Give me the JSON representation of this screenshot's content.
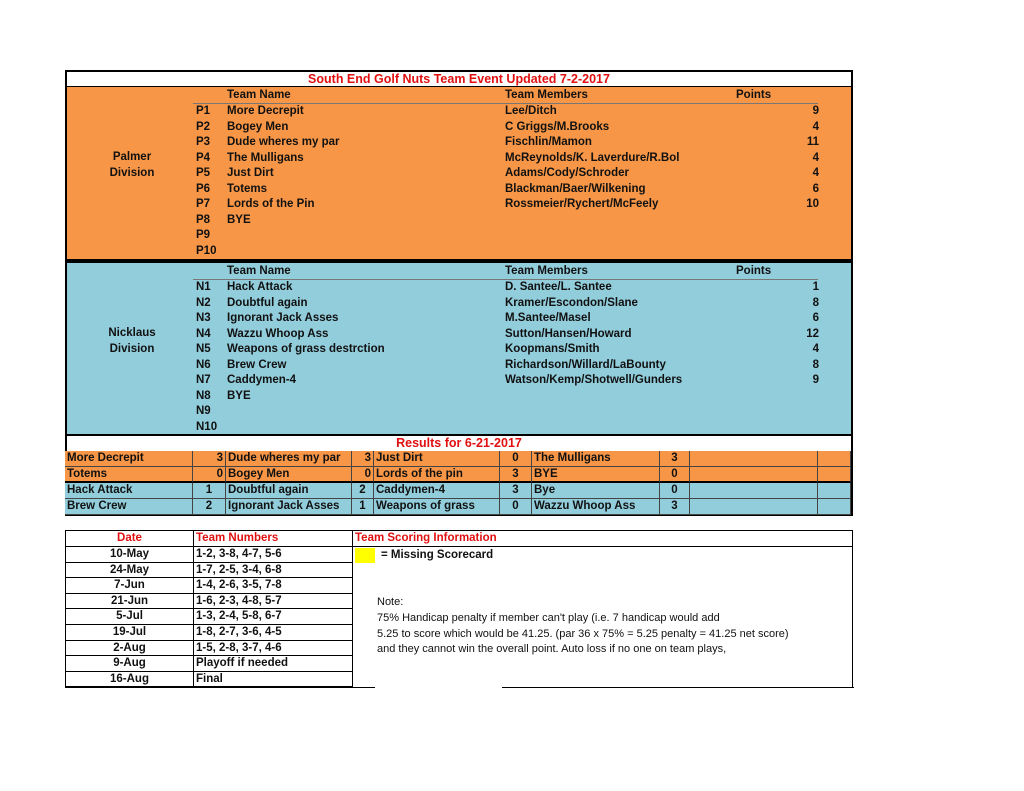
{
  "title": "South End Golf Nuts Team Event Updated 7-2-2017",
  "headers": {
    "team_name": "Team Name",
    "team_members": "Team Members",
    "points": "Points"
  },
  "palmer": {
    "label1": "Palmer",
    "label2": "Division",
    "teams": [
      {
        "code": "P1",
        "name": "More Decrepit",
        "members": "Lee/Ditch",
        "points": "9"
      },
      {
        "code": "P2",
        "name": "Bogey Men",
        "members": "C Griggs/M.Brooks",
        "points": "4"
      },
      {
        "code": "P3",
        "name": "Dude wheres my par",
        "members": "Fischlin/Mamon",
        "points": "11"
      },
      {
        "code": "P4",
        "name": "The Mulligans",
        "members": "McReynolds/K. Laverdure/R.Bol",
        "points": "4"
      },
      {
        "code": "P5",
        "name": "Just Dirt",
        "members": "Adams/Cody/Schroder",
        "points": "4"
      },
      {
        "code": "P6",
        "name": "Totems",
        "members": "Blackman/Baer/Wilkening",
        "points": "6"
      },
      {
        "code": "P7",
        "name": "Lords of the Pin",
        "members": "Rossmeier/Rychert/McFeely",
        "points": "10"
      },
      {
        "code": "P8",
        "name": "BYE",
        "members": "",
        "points": ""
      },
      {
        "code": "P9",
        "name": "",
        "members": "",
        "points": ""
      },
      {
        "code": "P10",
        "name": "",
        "members": "",
        "points": ""
      }
    ]
  },
  "nicklaus": {
    "label1": "Nicklaus",
    "label2": "Division",
    "teams": [
      {
        "code": "N1",
        "name": "Hack Attack",
        "members": "D. Santee/L. Santee",
        "points": "1"
      },
      {
        "code": "N2",
        "name": "Doubtful again",
        "members": "Kramer/Escondon/Slane",
        "points": "8"
      },
      {
        "code": "N3",
        "name": "Ignorant Jack Asses",
        "members": "M.Santee/Masel",
        "points": "6"
      },
      {
        "code": "N4",
        "name": "Wazzu Whoop Ass",
        "members": "Sutton/Hansen/Howard",
        "points": "12"
      },
      {
        "code": "N5",
        "name": "Weapons of grass destrction",
        "members": "Koopmans/Smith",
        "points": "4"
      },
      {
        "code": "N6",
        "name": "Brew Crew",
        "members": "Richardson/Willard/LaBounty",
        "points": "8"
      },
      {
        "code": "N7",
        "name": "Caddymen-4",
        "members": "Watson/Kemp/Shotwell/Gunders",
        "points": "9"
      },
      {
        "code": "N8",
        "name": "BYE",
        "members": "",
        "points": ""
      },
      {
        "code": "N9",
        "name": "",
        "members": "",
        "points": ""
      },
      {
        "code": "N10",
        "name": "",
        "members": "",
        "points": ""
      }
    ]
  },
  "results": {
    "title": "Results for 6-21-2017",
    "rows": [
      {
        "color": "orange",
        "cells": [
          "More Decrepit",
          "3",
          "Dude wheres my par",
          "3",
          "Just Dirt",
          "0",
          "The Mulligans",
          "3"
        ]
      },
      {
        "color": "orange",
        "cells": [
          "Totems",
          "0",
          "Bogey Men",
          "0",
          "Lords of the pin",
          "3",
          "BYE",
          "0"
        ]
      },
      {
        "color": "blue",
        "cells": [
          "Hack Attack",
          "1",
          "Doubtful again",
          "2",
          "Caddymen-4",
          "3",
          "Bye",
          "0"
        ]
      },
      {
        "color": "blue",
        "cells": [
          "Brew Crew",
          "2",
          "Ignorant Jack Asses",
          "1",
          "Weapons of grass",
          "0",
          "Wazzu Whoop Ass",
          "3"
        ]
      }
    ]
  },
  "schedule": {
    "headers": {
      "date": "Date",
      "teams": "Team Numbers",
      "info": "Team Scoring Information"
    },
    "rows": [
      {
        "date": "10-May",
        "teams": "1-2, 3-8, 4-7, 5-6"
      },
      {
        "date": "24-May",
        "teams": "1-7, 2-5, 3-4, 6-8"
      },
      {
        "date": "7-Jun",
        "teams": "1-4, 2-6, 3-5, 7-8"
      },
      {
        "date": "21-Jun",
        "teams": "1-6, 2-3, 4-8, 5-7"
      },
      {
        "date": "5-Jul",
        "teams": "1-3, 2-4, 5-8, 6-7"
      },
      {
        "date": "19-Jul",
        "teams": "1-8, 2-7, 3-6, 4-5"
      },
      {
        "date": "2-Aug",
        "teams": "1-5, 2-8, 3-7, 4-6"
      },
      {
        "date": "9-Aug",
        "teams": "Playoff if needed"
      },
      {
        "date": "16-Aug",
        "teams": "Final"
      }
    ],
    "legend": "= Missing Scorecard",
    "note_label": "Note:",
    "note_lines": [
      "75% Handicap penalty if member can't play (i.e. 7 handicap would add",
      "5.25 to score which would be 41.25. (par 36 x 75% = 5.25 penalty = 41.25 net score)",
      "and they cannot win the overall point. Auto loss if no one on team plays,"
    ]
  },
  "colors": {
    "orange": "#f79646",
    "blue": "#92cddc",
    "title_red": "#e01010",
    "missing_yellow": "#ffff00"
  }
}
